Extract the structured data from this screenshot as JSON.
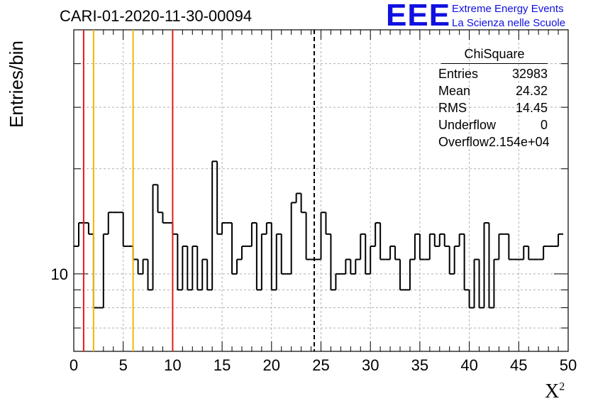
{
  "header": {
    "title": "CARI-01-2020-11-30-00094",
    "logo_text": "EEE",
    "logo_line1": "Extreme Energy Events",
    "logo_line2": "La Scienza nelle Scuole"
  },
  "stats_box": {
    "title": "ChiSquare",
    "rows": [
      {
        "label": "Entries",
        "value": "32983"
      },
      {
        "label": "Mean",
        "value": "24.32"
      },
      {
        "label": "RMS",
        "value": "14.45"
      },
      {
        "label": "Underflow",
        "value": "0"
      },
      {
        "label": "Overflow",
        "value": "2.154e+04"
      }
    ]
  },
  "colors": {
    "red_marker": "#e41a1c",
    "yellow_marker": "#f0b800",
    "histogram": "#000000",
    "mean_marker": "#000000"
  },
  "chart_data": {
    "type": "histogram",
    "title": "CARI-01-2020-11-30-00094",
    "xlabel": "X",
    "xlabel_sup": "2",
    "ylabel": "Entries/bin",
    "xlim": [
      0,
      50
    ],
    "ylim": [
      6,
      50
    ],
    "yscale": "log",
    "x_ticks": [
      0,
      5,
      10,
      15,
      20,
      25,
      30,
      35,
      40,
      45,
      50
    ],
    "y_tick_labels": [
      {
        "value": 10,
        "label": "10"
      }
    ],
    "grid": true,
    "bin_width": 0.5,
    "values": [
      12,
      14,
      14,
      13,
      8,
      8,
      13,
      15,
      15,
      15,
      12,
      12,
      11,
      10,
      11,
      9,
      18,
      15,
      14,
      14,
      13,
      9,
      12,
      9,
      12,
      9,
      11,
      9,
      21,
      13,
      14,
      14,
      10,
      11,
      12,
      12,
      14,
      9,
      13,
      14,
      9,
      13,
      10,
      10,
      16,
      17,
      15,
      11,
      11,
      11,
      15,
      13,
      9,
      10,
      10,
      11,
      10,
      11,
      13,
      10,
      12,
      14,
      11,
      11,
      12,
      11,
      9,
      9,
      11,
      13,
      11,
      11,
      13,
      12,
      13,
      12,
      10,
      12,
      13,
      9,
      8,
      11,
      8,
      14,
      8,
      11,
      13,
      13,
      11,
      11,
      11,
      12,
      11,
      11,
      11,
      12,
      12,
      12,
      13
    ]
  },
  "markers": [
    {
      "x": 1,
      "color": "red"
    },
    {
      "x": 2,
      "color": "yellow"
    },
    {
      "x": 6,
      "color": "yellow"
    },
    {
      "x": 10,
      "color": "red"
    },
    {
      "x": 24.32,
      "color": "mean",
      "style": "dashed"
    }
  ]
}
